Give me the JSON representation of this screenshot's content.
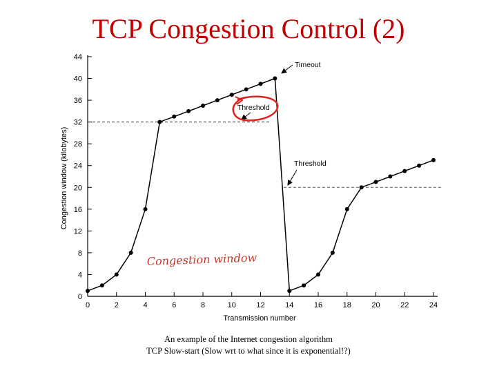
{
  "slide": {
    "title": "TCP Congestion Control (2)",
    "caption_line1": "An example of the Internet congestion algorithm",
    "caption_line2": "TCP Slow-start (Slow wrt to what since it is exponential!?)"
  },
  "chart_data": {
    "type": "line",
    "xlabel": "Transmission number",
    "ylabel": "Congestion window (kilobytes)",
    "xlim": [
      0,
      24
    ],
    "ylim": [
      0,
      44
    ],
    "xticks": [
      0,
      2,
      4,
      6,
      8,
      10,
      12,
      14,
      16,
      18,
      20,
      22,
      24
    ],
    "yticks": [
      0,
      4,
      8,
      12,
      16,
      20,
      24,
      28,
      32,
      36,
      40,
      44
    ],
    "grid": false,
    "line_color": "#000000",
    "threshold_levels": [
      32,
      20
    ],
    "series": [
      {
        "x": [
          0,
          1,
          2,
          3,
          4,
          5,
          6,
          7,
          8,
          9,
          10,
          11,
          12,
          13
        ],
        "y": [
          1,
          2,
          4,
          8,
          16,
          32,
          33,
          34,
          35,
          36,
          37,
          38,
          39,
          40
        ]
      },
      {
        "x": [
          14,
          15,
          16,
          17,
          18,
          19,
          20,
          21,
          22,
          23,
          24
        ],
        "y": [
          1,
          2,
          4,
          8,
          16,
          20,
          21,
          22,
          23,
          24,
          25
        ]
      }
    ],
    "annotations": {
      "timeout": "Timeout",
      "threshold_1": "Threshold",
      "threshold_2": "Threshold",
      "handwritten": "Congestion window",
      "highlight_color": "#e0201a"
    }
  }
}
